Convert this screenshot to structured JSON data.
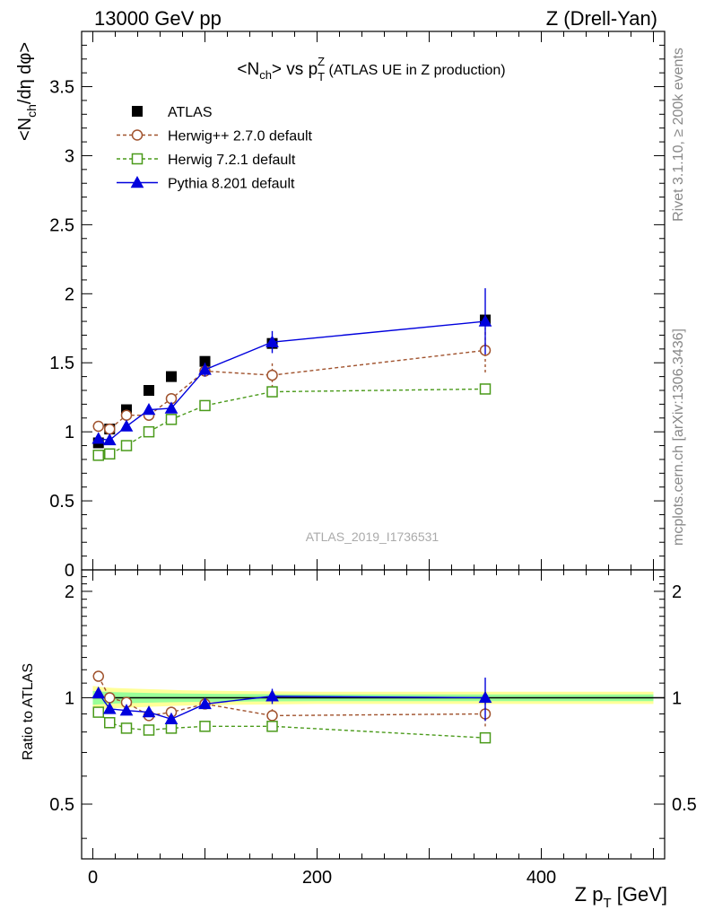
{
  "header": {
    "left_label": "13000 GeV pp",
    "right_label": "Z (Drell-Yan)"
  },
  "side_labels": {
    "rivet": "Rivet 3.1.10, ≥ 200k events",
    "mcplots": "mcplots.cern.ch [arXiv:1306.3436]"
  },
  "chart_data": [
    {
      "type": "scatter",
      "panel": "main",
      "title_main": "<N",
      "title_main_sub": "ch",
      "title_vs": "> vs p",
      "title_vs_sup": "Z",
      "title_vs_sub": "T",
      "title_tail": " (ATLAS UE in Z production)",
      "ylabel": "<N",
      "ylabel_sub": "ch",
      "ylabel_tail": "/dη dφ>",
      "watermark": "ATLAS_2019_I1736531",
      "xlim": [
        -10,
        510
      ],
      "ylim": [
        0,
        3.9
      ],
      "yticks": [
        0,
        0.5,
        1,
        1.5,
        2,
        2.5,
        3,
        3.5
      ],
      "ytick_labels": [
        "0",
        "0.5",
        "1",
        "1.5",
        "2",
        "2.5",
        "3",
        "3.5"
      ],
      "legend_position": "top-left",
      "series": [
        {
          "name": "ATLAS",
          "style": "data",
          "color": "#000000",
          "marker": "square-filled",
          "x": [
            5,
            15,
            30,
            50,
            70,
            100,
            160,
            350
          ],
          "y": [
            0.92,
            1.02,
            1.16,
            1.3,
            1.4,
            1.51,
            1.64,
            1.81
          ]
        },
        {
          "name": "Herwig++ 2.7.0 default",
          "style": "dashed",
          "color": "#a0522d",
          "marker": "circle-open",
          "x": [
            5,
            15,
            30,
            50,
            70,
            100,
            160,
            350
          ],
          "y": [
            1.04,
            1.02,
            1.12,
            1.12,
            1.24,
            1.44,
            1.41,
            1.59
          ],
          "yerr": [
            0,
            0,
            0,
            0,
            0.03,
            0,
            0.09,
            0.16
          ]
        },
        {
          "name": "Herwig 7.2.1 default",
          "style": "dashed",
          "color": "#4a9a1a",
          "marker": "square-open",
          "x": [
            5,
            15,
            30,
            50,
            70,
            100,
            160,
            350
          ],
          "y": [
            0.83,
            0.84,
            0.9,
            1.0,
            1.09,
            1.19,
            1.29,
            1.31
          ],
          "yerr": [
            0,
            0,
            0,
            0,
            0,
            0,
            0,
            0.02
          ]
        },
        {
          "name": "Pythia 8.201 default",
          "style": "solid",
          "color": "#0000dd",
          "marker": "triangle-filled",
          "x": [
            5,
            15,
            30,
            50,
            70,
            100,
            160,
            350
          ],
          "y": [
            0.95,
            0.94,
            1.04,
            1.16,
            1.17,
            1.45,
            1.65,
            1.8
          ],
          "yerr": [
            0,
            0,
            0,
            0,
            0.03,
            0.05,
            0.08,
            0.24
          ]
        }
      ]
    },
    {
      "type": "scatter",
      "panel": "ratio",
      "ylabel": "Ratio to ATLAS",
      "xlabel_main": "Z p",
      "xlabel_sub": "T",
      "xlabel_tail": " [GeV]",
      "xlim": [
        -10,
        510
      ],
      "ylim": [
        0.35,
        2.3
      ],
      "yticks": [
        0.5,
        1,
        2
      ],
      "ytick_labels": [
        "0.5",
        "1",
        "2"
      ],
      "xticks": [
        0,
        200,
        400
      ],
      "xtick_labels": [
        "0",
        "200",
        "400"
      ],
      "bands": {
        "outer_color": "#ffff99",
        "inner_color": "#99ff99",
        "x": [
          0,
          10,
          20,
          40,
          60,
          80,
          120,
          200,
          500
        ],
        "outer_half": [
          0.08,
          0.07,
          0.065,
          0.06,
          0.055,
          0.05,
          0.045,
          0.04,
          0.04
        ],
        "inner_half": [
          0.045,
          0.04,
          0.037,
          0.033,
          0.03,
          0.028,
          0.025,
          0.022,
          0.022
        ]
      },
      "series": [
        {
          "name": "Herwig++ 2.7.0 default",
          "style": "dashed",
          "color": "#a0522d",
          "marker": "circle-open",
          "x": [
            5,
            15,
            30,
            50,
            70,
            100,
            160,
            350
          ],
          "y": [
            1.15,
            1.0,
            0.97,
            0.89,
            0.91,
            0.96,
            0.89,
            0.9
          ],
          "yerr": [
            0,
            0,
            0,
            0,
            0.02,
            0,
            0.04,
            0.07
          ]
        },
        {
          "name": "Herwig 7.2.1 default",
          "style": "dashed",
          "color": "#4a9a1a",
          "marker": "square-open",
          "x": [
            5,
            15,
            30,
            50,
            70,
            100,
            160,
            350
          ],
          "y": [
            0.91,
            0.85,
            0.82,
            0.81,
            0.82,
            0.83,
            0.83,
            0.77
          ],
          "yerr": [
            0,
            0,
            0,
            0,
            0,
            0,
            0,
            0.01
          ]
        },
        {
          "name": "Pythia 8.201 default",
          "style": "solid",
          "color": "#0000dd",
          "marker": "triangle-filled",
          "x": [
            5,
            15,
            30,
            50,
            70,
            100,
            160,
            350
          ],
          "y": [
            1.03,
            0.93,
            0.92,
            0.91,
            0.87,
            0.96,
            1.01,
            1.0
          ],
          "yerr": [
            0,
            0,
            0,
            0,
            0.02,
            0.03,
            0.05,
            0.14
          ]
        }
      ]
    }
  ]
}
